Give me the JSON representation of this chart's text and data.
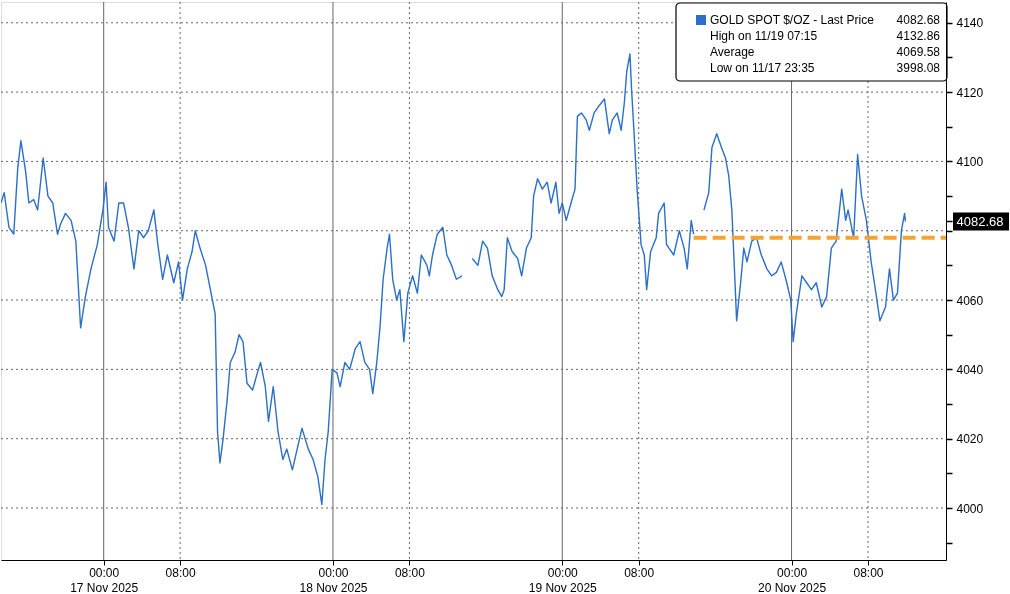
{
  "chart_data": {
    "type": "line",
    "xlim": [
      "2025-11-16T13:15",
      "2025-11-20T16:10"
    ],
    "xticks": [
      {
        "value": "2025-11-17T00:00",
        "label": "00:00\n17 Nov 2025"
      },
      {
        "value": "2025-11-17T08:00",
        "label": "08:00"
      },
      {
        "value": "2025-11-18T00:00",
        "label": "00:00\n18 Nov 2025"
      },
      {
        "value": "2025-11-18T08:00",
        "label": "08:00"
      },
      {
        "value": "2025-11-19T00:00",
        "label": "00:00\n19 Nov 2025"
      },
      {
        "value": "2025-11-19T08:00",
        "label": "08:00"
      },
      {
        "value": "2025-11-20T00:00",
        "label": "00:00\n20 Nov 2025"
      },
      {
        "value": "2025-11-20T08:00",
        "label": "08:00"
      }
    ],
    "ylim": [
      3985,
      4146
    ],
    "yticks": [
      {
        "value": 3990,
        "label": null
      },
      4000,
      {
        "value": 4010,
        "label": null
      },
      4020,
      {
        "value": 4030,
        "label": null
      },
      4040,
      {
        "value": 4050,
        "label": null
      },
      4060,
      {
        "value": 4070,
        "label": null
      },
      {
        "value": 4080,
        "label": null
      },
      4082.68,
      {
        "value": 4090,
        "label": null
      },
      4100,
      {
        "value": 4110,
        "label": null
      },
      4120,
      {
        "value": 4130,
        "label": null
      },
      4140
    ],
    "grid": true,
    "legend": "top right",
    "x": [
      "2025-11-16T13:15",
      "2025-11-16T13:35",
      "2025-11-16T14:05",
      "2025-11-16T14:35",
      "2025-11-16T15:00",
      "2025-11-16T15:20",
      "2025-11-16T15:50",
      "2025-11-16T16:10",
      "2025-11-16T16:40",
      "2025-11-16T17:05",
      "2025-11-16T17:40",
      "2025-11-16T18:10",
      "2025-11-16T18:40",
      "2025-11-16T19:10",
      "2025-11-16T19:30",
      "2025-11-16T20:00",
      "2025-11-16T20:35",
      "2025-11-16T21:05",
      "2025-11-16T21:35",
      "2025-11-16T22:05",
      "2025-11-16T22:40",
      "2025-11-16T23:20",
      "2025-11-16T23:55",
      "2025-11-17T00:15",
      "2025-11-17T00:30",
      "2025-11-17T01:05",
      "2025-11-17T01:35",
      "2025-11-17T02:05",
      "2025-11-17T02:35",
      "2025-11-17T03:10",
      "2025-11-17T03:40",
      "2025-11-17T04:10",
      "2025-11-17T04:40",
      "2025-11-17T05:15",
      "2025-11-17T05:40",
      "2025-11-17T06:10",
      "2025-11-17T06:40",
      "2025-11-17T07:20",
      "2025-11-17T07:50",
      "2025-11-17T08:15",
      "2025-11-17T08:45",
      "2025-11-17T09:15",
      "2025-11-17T09:35",
      "2025-11-17T10:05",
      "2025-11-17T10:40",
      "2025-11-17T11:10",
      "2025-11-17T11:40",
      "2025-11-17T11:55",
      "2025-11-17T12:10",
      "2025-11-17T12:30",
      "2025-11-17T12:55",
      "2025-11-17T13:15",
      "2025-11-17T13:45",
      "2025-11-17T14:10",
      "2025-11-17T14:35",
      "2025-11-17T15:00",
      "2025-11-17T15:35",
      "2025-11-17T16:05",
      "2025-11-17T16:25",
      "2025-11-17T16:55",
      "2025-11-17T17:15",
      "2025-11-17T17:45",
      "2025-11-17T18:15",
      "2025-11-17T18:45",
      "2025-11-17T19:10",
      "2025-11-17T19:45",
      "2025-11-17T20:15",
      "2025-11-17T20:45",
      "2025-11-17T21:25",
      "2025-11-17T21:55",
      "2025-11-17T22:25",
      "2025-11-17T22:50",
      "2025-11-17T23:10",
      "2025-11-17T23:30",
      "2025-11-17T23:55",
      "2025-11-18T00:25",
      "2025-11-18T00:45",
      "2025-11-18T01:15",
      "2025-11-18T01:45",
      "2025-11-18T02:20",
      "2025-11-18T02:50",
      "2025-11-18T03:20",
      "2025-11-18T03:50",
      "2025-11-18T04:10",
      "2025-11-18T04:35",
      "2025-11-18T04:55",
      "2025-11-18T05:15",
      "2025-11-18T05:40",
      "2025-11-18T05:55",
      "2025-11-18T06:15",
      "2025-11-18T06:40",
      "2025-11-18T07:00",
      "2025-11-18T07:25",
      "2025-11-18T07:50",
      "2025-11-18T08:20",
      "2025-11-18T08:50",
      "2025-11-18T09:15",
      "2025-11-18T09:50",
      "2025-11-18T10:05",
      "2025-11-18T10:25",
      "2025-11-18T10:55",
      "2025-11-18T11:30",
      "2025-11-18T11:55",
      "2025-11-18T12:25",
      "2025-11-18T12:55",
      "2025-11-18T13:30",
      "2025-11-18T14:00",
      "2025-11-18T14:35",
      "2025-11-18T15:10",
      "2025-11-18T15:40",
      "2025-11-18T16:10",
      "2025-11-18T16:40",
      "2025-11-18T17:15",
      "2025-11-18T17:40",
      "2025-11-18T17:55",
      "2025-11-18T18:15",
      "2025-11-18T18:45",
      "2025-11-18T19:20",
      "2025-11-18T19:45",
      "2025-11-18T20:15",
      "2025-11-18T20:45",
      "2025-11-18T21:00",
      "2025-11-18T21:25",
      "2025-11-18T21:55",
      "2025-11-18T22:25",
      "2025-11-18T22:50",
      "2025-11-18T23:20",
      "2025-11-18T23:40",
      "2025-11-19T00:00",
      "2025-11-19T00:25",
      "2025-11-19T00:55",
      "2025-11-19T01:20",
      "2025-11-19T01:35",
      "2025-11-19T02:00",
      "2025-11-19T02:30",
      "2025-11-19T02:50",
      "2025-11-19T03:20",
      "2025-11-19T03:50",
      "2025-11-19T04:25",
      "2025-11-19T04:55",
      "2025-11-19T05:15",
      "2025-11-19T05:45",
      "2025-11-19T06:10",
      "2025-11-19T06:30",
      "2025-11-19T06:45",
      "2025-11-19T07:05",
      "2025-11-19T07:15",
      "2025-11-19T07:30",
      "2025-11-19T07:50",
      "2025-11-19T08:15",
      "2025-11-19T08:35",
      "2025-11-19T08:50",
      "2025-11-19T09:15",
      "2025-11-19T09:50",
      "2025-11-19T10:05",
      "2025-11-19T10:40",
      "2025-11-19T10:55",
      "2025-11-19T11:10",
      "2025-11-19T11:40",
      "2025-11-19T12:15",
      "2025-11-19T12:45",
      "2025-11-19T13:05",
      "2025-11-19T13:30",
      "2025-11-19T13:45",
      "2025-11-19T14:20",
      "2025-11-19T14:50",
      "2025-11-19T15:20",
      "2025-11-19T15:40",
      "2025-11-19T16:10",
      "2025-11-19T16:40",
      "2025-11-19T17:05",
      "2025-11-19T17:25",
      "2025-11-19T17:45",
      "2025-11-19T18:05",
      "2025-11-19T18:15",
      "2025-11-19T18:40",
      "2025-11-19T19:00",
      "2025-11-19T19:20",
      "2025-11-19T19:50",
      "2025-11-19T20:20",
      "2025-11-19T20:50",
      "2025-11-19T21:25",
      "2025-11-19T21:55",
      "2025-11-19T22:25",
      "2025-11-19T22:55",
      "2025-11-19T23:30",
      "2025-11-19T23:55",
      "2025-11-20T00:10",
      "2025-11-20T00:30",
      "2025-11-20T01:05",
      "2025-11-20T01:35",
      "2025-11-20T02:05",
      "2025-11-20T02:35",
      "2025-11-20T03:10",
      "2025-11-20T03:40",
      "2025-11-20T04:10",
      "2025-11-20T04:40",
      "2025-11-20T05:15",
      "2025-11-20T05:40",
      "2025-11-20T05:55",
      "2025-11-20T06:30",
      "2025-11-20T06:55",
      "2025-11-20T07:20",
      "2025-11-20T07:50",
      "2025-11-20T08:20",
      "2025-11-20T08:50",
      "2025-11-20T09:15",
      "2025-11-20T09:50",
      "2025-11-20T10:15",
      "2025-11-20T10:40",
      "2025-11-20T11:05",
      "2025-11-20T11:30",
      "2025-11-20T11:50",
      "2025-11-20T11:55"
    ],
    "series": [
      {
        "name": "GOLD SPOT $/OZ - Last Price",
        "color": "#2a6fc9",
        "values": [
          4088,
          4091,
          4081,
          4079,
          4098,
          4106,
          4097,
          4088,
          4089,
          4086,
          4101,
          4090,
          4088,
          4079,
          4082,
          4085,
          4083,
          4077,
          4052,
          4061,
          4069,
          4076,
          4086,
          4094,
          4081,
          4077,
          4088,
          4088,
          4081,
          4069,
          4080,
          4078,
          4080,
          4086,
          4076,
          4066,
          4073,
          4065,
          4071,
          4060,
          4069,
          4074,
          4080,
          4075,
          4070,
          4063,
          4056,
          4022,
          4013,
          4020,
          4031,
          4042,
          4045,
          4050,
          4048,
          4036,
          4034,
          4039,
          4042,
          4035,
          4025,
          4035,
          4022,
          4014,
          4017,
          4011,
          4017,
          4023,
          4017,
          4014,
          4009,
          4001,
          4014,
          4022,
          4040,
          4039,
          4035,
          4042,
          4040,
          4046,
          4048,
          4042,
          4040,
          4033,
          4042,
          4052,
          4066,
          4075,
          4079,
          4066,
          4060,
          4063,
          4048,
          4062,
          4067,
          4062,
          4073,
          4070,
          4067,
          4073,
          4079,
          4081,
          4073,
          4070,
          4066,
          4067,
          null,
          4072,
          4070,
          4077,
          4075,
          4067,
          4063,
          4061,
          4063,
          4078,
          4074,
          4072,
          4067,
          4075,
          4078,
          4090,
          4095,
          4092,
          4094,
          4088,
          4094,
          4085,
          4088,
          4083,
          4088,
          4092,
          4113,
          4114,
          4112,
          4109,
          4114,
          4116,
          4118,
          4108,
          4112,
          4114,
          4109,
          4117,
          4126,
          4131,
          4121,
          4109,
          4092,
          4076,
          4073,
          4063,
          4074,
          4078,
          4085,
          4088,
          4076,
          4075,
          4073,
          4080,
          4075,
          4069,
          4083,
          4079,
          null,
          4086,
          4091,
          4104,
          4108,
          4104,
          4101,
          4096,
          4086,
          4065,
          4054,
          4065,
          4075,
          4071,
          4077,
          4078,
          4073,
          4069,
          4067,
          4068,
          4071,
          4065,
          4060,
          4048,
          4056,
          4067,
          4065,
          4063,
          4065,
          4058,
          4061,
          4075,
          4077,
          4092,
          4083,
          4086,
          4078,
          4102,
          4090,
          4083,
          4071,
          4062,
          4054,
          4058,
          4069,
          4060,
          4062,
          4080,
          4085,
          4082.68
        ]
      },
      {
        "type": "line",
        "color": "#f4a433",
        "line_style": "dashed",
        "x": [
          "2025-11-19T13:45",
          "2025-11-20T16:10"
        ],
        "values": [
          4078,
          4078
        ]
      }
    ],
    "annotations": [
      "4082.68",
      "High on 11/19 07:15",
      "4132.86",
      "Average",
      "4069.58",
      "Low on 11/17 23:35",
      "3998.08"
    ]
  }
}
